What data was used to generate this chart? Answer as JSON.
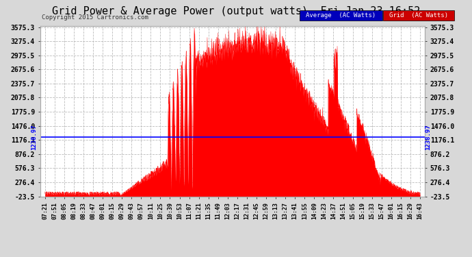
{
  "title": "Grid Power & Average Power (output watts)  Fri Jan 23 16:52",
  "copyright": "Copyright 2015 Cartronics.com",
  "avg_value": 1238.97,
  "y_min": -23.5,
  "y_max": 3575.3,
  "yticks": [
    -23.5,
    276.4,
    576.3,
    876.2,
    1176.1,
    1476.0,
    1775.9,
    2075.8,
    2375.7,
    2675.6,
    2975.5,
    3275.4,
    3575.3
  ],
  "xtick_labels": [
    "07:21",
    "07:51",
    "08:05",
    "08:19",
    "08:33",
    "08:47",
    "09:01",
    "09:15",
    "09:29",
    "09:43",
    "09:57",
    "10:11",
    "10:25",
    "10:39",
    "10:53",
    "11:07",
    "11:21",
    "11:35",
    "11:49",
    "12:03",
    "12:17",
    "12:31",
    "12:45",
    "12:59",
    "13:13",
    "13:27",
    "13:41",
    "13:55",
    "14:09",
    "14:23",
    "14:37",
    "14:51",
    "15:05",
    "15:19",
    "15:33",
    "15:47",
    "16:01",
    "16:15",
    "16:29",
    "16:43"
  ],
  "plot_bg_color": "#ffffff",
  "outer_bg_color": "#d8d8d8",
  "grid_color": "#bbbbbb",
  "bar_color": "#ff0000",
  "avg_line_color": "#0000ff",
  "legend_avg_bg": "#0000bb",
  "legend_grid_bg": "#cc0000",
  "title_color": "#000000"
}
